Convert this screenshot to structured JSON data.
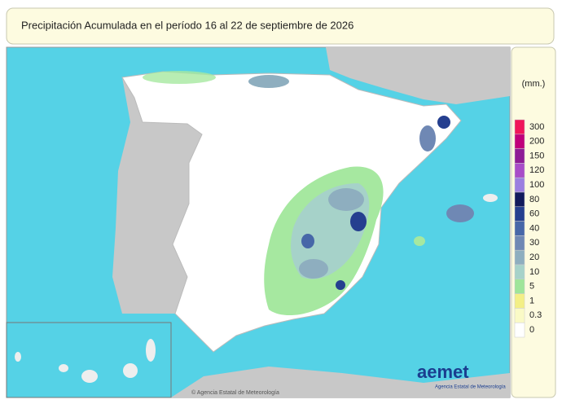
{
  "title": "Precipitación Acumulada en el período 16 al 22 de septiembre de 2026",
  "legend": {
    "unit": "(mm.)",
    "items": [
      {
        "value": 300,
        "color": "#f0165a"
      },
      {
        "value": 200,
        "color": "#c0007a"
      },
      {
        "value": 150,
        "color": "#8e1c96"
      },
      {
        "value": 120,
        "color": "#a84cc8"
      },
      {
        "value": 100,
        "color": "#9b7fe0"
      },
      {
        "value": 80,
        "color": "#121a5c"
      },
      {
        "value": 60,
        "color": "#253f8f"
      },
      {
        "value": 40,
        "color": "#4767a8"
      },
      {
        "value": 30,
        "color": "#6f88b4"
      },
      {
        "value": 20,
        "color": "#8eaebf"
      },
      {
        "value": 10,
        "color": "#a6d2c9"
      },
      {
        "value": 5,
        "color": "#9fe59a"
      },
      {
        "value": 1,
        "color": "#f3ef86"
      },
      {
        "value": 0.3,
        "color": "#fafac6"
      },
      {
        "value": 0,
        "color": "#ffffff"
      }
    ]
  },
  "logo": {
    "name": "aemet",
    "subtitle": "Agencia Estatal de Meteorología"
  },
  "footer": "© Agencia Estatal de Meteorología"
}
